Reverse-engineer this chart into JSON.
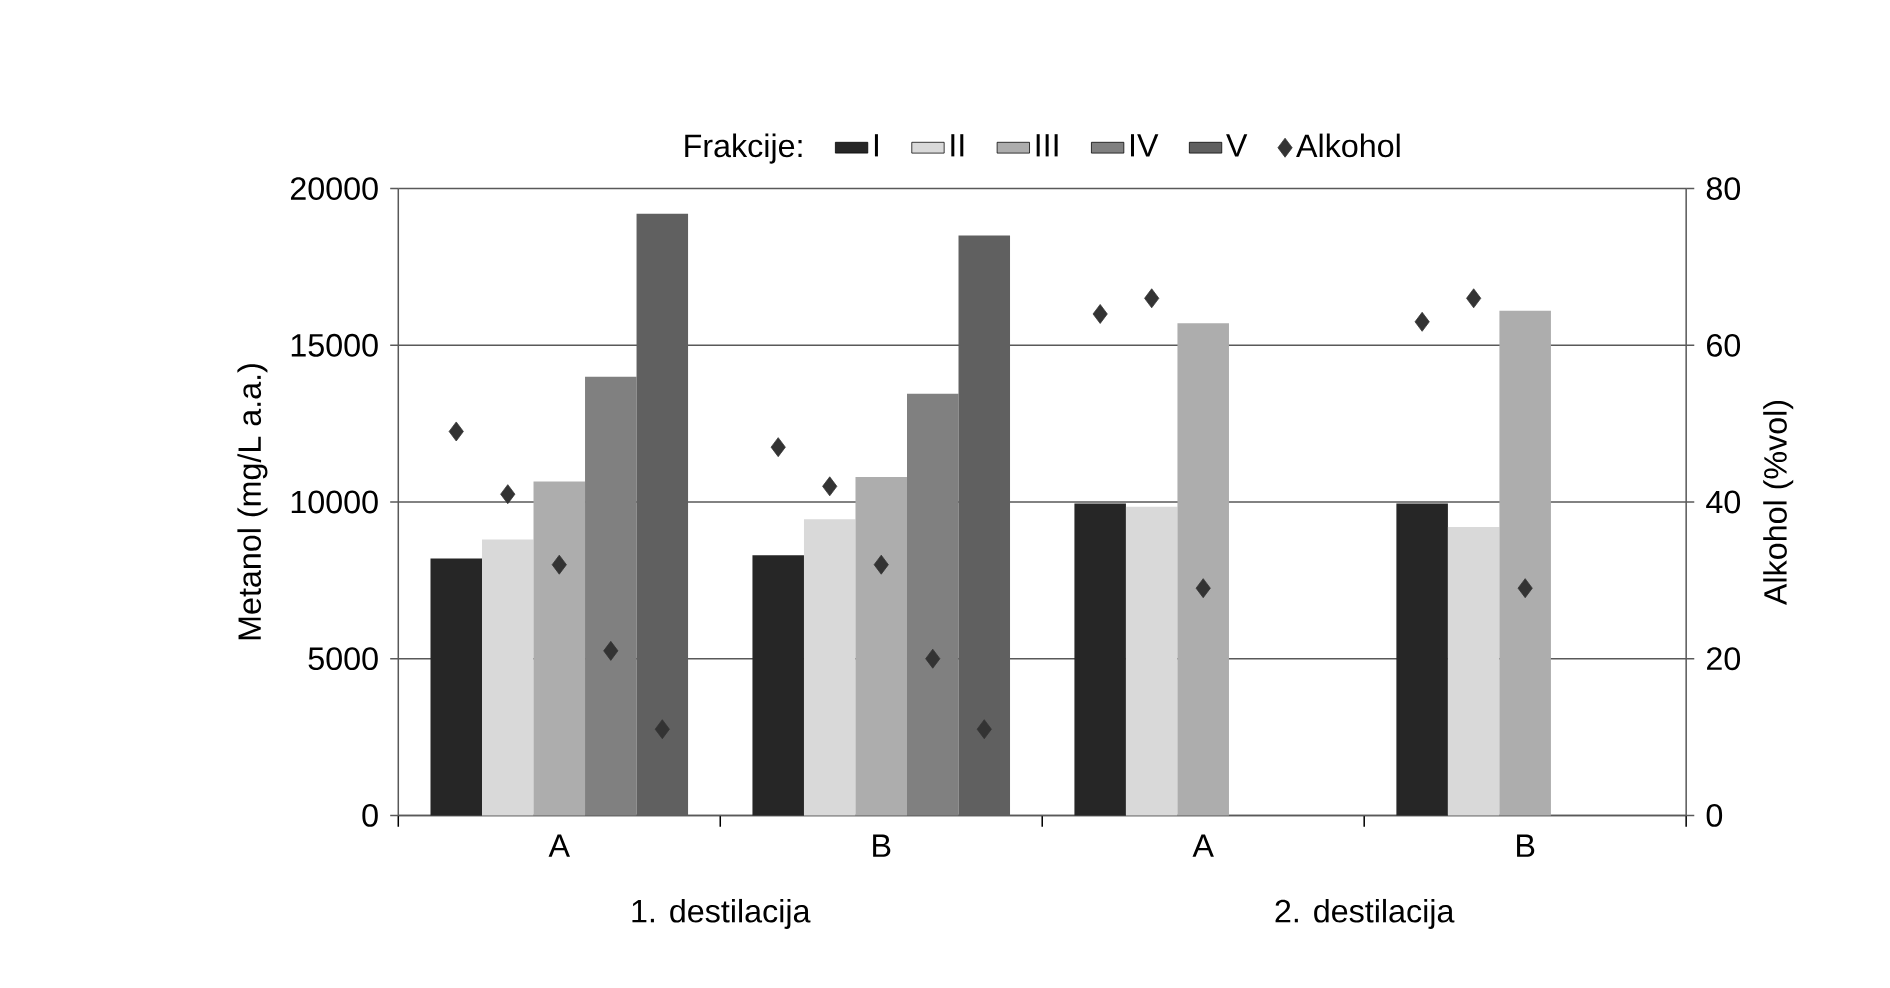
{
  "chart_data": {
    "type": "bar",
    "ylabel": "Metanol (mg/L a.a.)",
    "y2label": "Alkohol (%vol)",
    "legend_title": "Frakcije:",
    "categories": [
      "A",
      "B",
      "A",
      "B"
    ],
    "annotations": [
      "1. destilacija",
      "2. destilacija"
    ],
    "series": [
      {
        "name": "I",
        "color": "#262626",
        "values": [
          8200,
          8300,
          9950,
          9950
        ]
      },
      {
        "name": "II",
        "color": "#d9d9d9",
        "values": [
          8800,
          9450,
          9850,
          9200
        ]
      },
      {
        "name": "III",
        "color": "#adadad",
        "values": [
          10650,
          10800,
          15700,
          16100
        ]
      },
      {
        "name": "IV",
        "color": "#808080",
        "values": [
          14000,
          13450,
          null,
          null
        ]
      },
      {
        "name": "V",
        "color": "#606060",
        "values": [
          19200,
          18500,
          null,
          null
        ]
      },
      {
        "name": "Alkohol",
        "type": "scatter",
        "axis": "y2",
        "color": "#333333",
        "marker": "diamond",
        "values": [
          49,
          47,
          64,
          63
        ]
      },
      {
        "type": "scatter",
        "axis": "y2",
        "color": "#333333",
        "marker": "diamond",
        "values": [
          41,
          42,
          66,
          66
        ]
      },
      {
        "type": "scatter",
        "axis": "y2",
        "color": "#333333",
        "marker": "diamond",
        "values": [
          32,
          32,
          29,
          29
        ]
      },
      {
        "type": "scatter",
        "axis": "y2",
        "color": "#333333",
        "marker": "diamond",
        "values": [
          21,
          20,
          null,
          null
        ]
      },
      {
        "type": "scatter",
        "axis": "y2",
        "color": "#333333",
        "marker": "diamond",
        "values": [
          11,
          11,
          null,
          null
        ]
      }
    ],
    "ylim": [
      0,
      20000
    ],
    "yticks": [
      0,
      5000,
      10000,
      15000,
      20000
    ],
    "y2lim": [
      0,
      80
    ],
    "y2ticks": [
      0,
      20,
      40,
      60,
      80
    ],
    "grid": "y",
    "legend": "top"
  }
}
